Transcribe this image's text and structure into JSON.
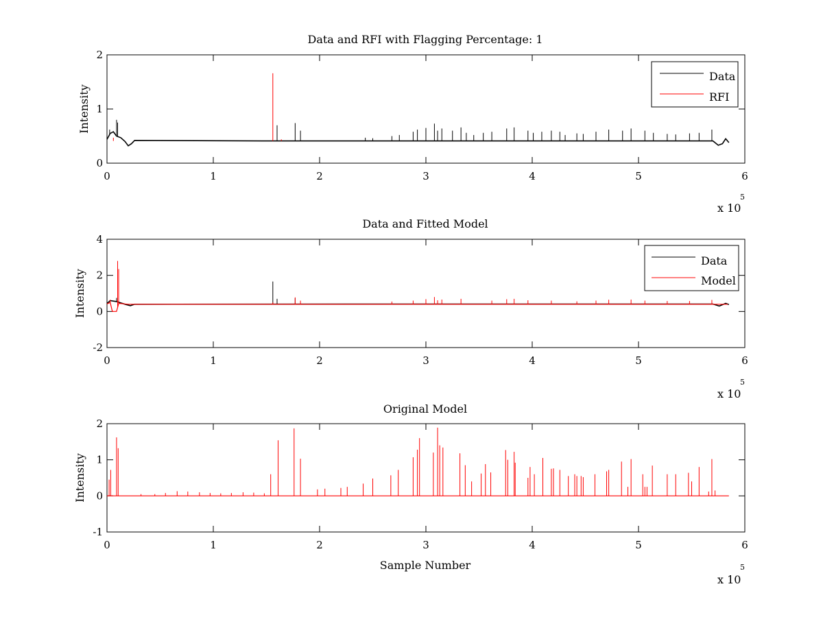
{
  "chart_data": [
    {
      "type": "line",
      "title": "Data and RFI with Flagging Percentage: 1",
      "xlabel": "",
      "ylabel": "Intensity",
      "xlim": [
        0,
        600000
      ],
      "ylim": [
        0,
        2
      ],
      "xticks": [
        "0",
        "1",
        "2",
        "3",
        "4",
        "5",
        "6"
      ],
      "yticks": [
        "0",
        "1",
        "2"
      ],
      "x_multiplier": {
        "base": "x 10",
        "exponent": "5"
      },
      "legend": {
        "position": "top-right",
        "entries": [
          {
            "name": "Data",
            "color": "#000000"
          },
          {
            "name": "RFI",
            "color": "#ff0000"
          }
        ]
      },
      "series": [
        {
          "name": "Data",
          "color": "#000000",
          "baseline": [
            [
              0,
              0.44
            ],
            [
              3000,
              0.55
            ],
            [
              6000,
              0.58
            ],
            [
              9000,
              0.5
            ],
            [
              13000,
              0.47
            ],
            [
              17000,
              0.4
            ],
            [
              20000,
              0.32
            ],
            [
              23000,
              0.36
            ],
            [
              26000,
              0.42
            ],
            [
              150000,
              0.41
            ],
            [
              300000,
              0.41
            ],
            [
              570000,
              0.41
            ],
            [
              575000,
              0.33
            ],
            [
              579000,
              0.36
            ],
            [
              582000,
              0.45
            ],
            [
              585000,
              0.38
            ]
          ],
          "spikes": [
            [
              2500,
              0.62
            ],
            [
              9000,
              0.8
            ],
            [
              10000,
              0.75
            ],
            [
              160000,
              0.7
            ],
            [
              177000,
              0.74
            ],
            [
              182000,
              0.6
            ],
            [
              243000,
              0.47
            ],
            [
              250000,
              0.46
            ],
            [
              268000,
              0.5
            ],
            [
              275000,
              0.52
            ],
            [
              288000,
              0.58
            ],
            [
              292000,
              0.62
            ],
            [
              300000,
              0.65
            ],
            [
              308000,
              0.73
            ],
            [
              311000,
              0.6
            ],
            [
              315000,
              0.64
            ],
            [
              325000,
              0.6
            ],
            [
              333000,
              0.66
            ],
            [
              338000,
              0.56
            ],
            [
              345000,
              0.52
            ],
            [
              354000,
              0.56
            ],
            [
              362000,
              0.58
            ],
            [
              376000,
              0.64
            ],
            [
              383000,
              0.66
            ],
            [
              396000,
              0.6
            ],
            [
              401000,
              0.56
            ],
            [
              409000,
              0.58
            ],
            [
              418000,
              0.6
            ],
            [
              426000,
              0.58
            ],
            [
              431000,
              0.52
            ],
            [
              442000,
              0.55
            ],
            [
              448000,
              0.54
            ],
            [
              460000,
              0.58
            ],
            [
              472000,
              0.62
            ],
            [
              485000,
              0.6
            ],
            [
              493000,
              0.64
            ],
            [
              506000,
              0.6
            ],
            [
              514000,
              0.56
            ],
            [
              527000,
              0.54
            ],
            [
              535000,
              0.53
            ],
            [
              548000,
              0.55
            ],
            [
              557000,
              0.56
            ],
            [
              569000,
              0.62
            ]
          ]
        },
        {
          "name": "RFI",
          "color": "#ff0000",
          "spikes": [
            [
              6000,
              0.47
            ],
            [
              156000,
              1.66
            ],
            [
              164000,
              0.44
            ]
          ]
        }
      ]
    },
    {
      "type": "line",
      "title": "Data and Fitted Model",
      "xlabel": "",
      "ylabel": "Intensity",
      "xlim": [
        0,
        600000
      ],
      "ylim": [
        -2,
        4
      ],
      "xticks": [
        "0",
        "1",
        "2",
        "3",
        "4",
        "5",
        "6"
      ],
      "yticks": [
        "-2",
        "0",
        "2",
        "4"
      ],
      "x_multiplier": {
        "base": "x 10",
        "exponent": "5"
      },
      "legend": {
        "position": "top-right",
        "entries": [
          {
            "name": "Data",
            "color": "#000000"
          },
          {
            "name": "Model",
            "color": "#ff0000"
          }
        ]
      },
      "series": [
        {
          "name": "Data",
          "color": "#000000",
          "baseline": [
            [
              0,
              0.44
            ],
            [
              3000,
              0.6
            ],
            [
              9000,
              0.55
            ],
            [
              17000,
              0.4
            ],
            [
              22000,
              0.32
            ],
            [
              26000,
              0.4
            ],
            [
              300000,
              0.41
            ],
            [
              570000,
              0.41
            ],
            [
              576000,
              0.3
            ],
            [
              582000,
              0.45
            ],
            [
              585000,
              0.38
            ]
          ],
          "spikes": [
            [
              9000,
              0.75
            ],
            [
              156000,
              1.66
            ],
            [
              160000,
              0.7
            ],
            [
              177000,
              0.74
            ]
          ]
        },
        {
          "name": "Model",
          "color": "#ff0000",
          "baseline": [
            [
              0,
              0.42
            ],
            [
              3000,
              0.5
            ],
            [
              5000,
              0.0
            ],
            [
              9000,
              0.0
            ],
            [
              11000,
              0.45
            ],
            [
              20000,
              0.4
            ],
            [
              584000,
              0.4
            ]
          ],
          "spikes": [
            [
              3000,
              0.65
            ],
            [
              10000,
              2.8
            ],
            [
              11000,
              2.35
            ],
            [
              156000,
              0.5
            ],
            [
              177000,
              0.78
            ],
            [
              182000,
              0.6
            ],
            [
              268000,
              0.55
            ],
            [
              288000,
              0.6
            ],
            [
              300000,
              0.68
            ],
            [
              308000,
              0.8
            ],
            [
              311000,
              0.62
            ],
            [
              315000,
              0.66
            ],
            [
              333000,
              0.7
            ],
            [
              362000,
              0.6
            ],
            [
              376000,
              0.68
            ],
            [
              383000,
              0.7
            ],
            [
              396000,
              0.62
            ],
            [
              418000,
              0.6
            ],
            [
              442000,
              0.56
            ],
            [
              460000,
              0.6
            ],
            [
              472000,
              0.65
            ],
            [
              493000,
              0.66
            ],
            [
              506000,
              0.6
            ],
            [
              527000,
              0.58
            ],
            [
              548000,
              0.58
            ],
            [
              569000,
              0.64
            ]
          ]
        }
      ]
    },
    {
      "type": "line",
      "title": "Original Model",
      "xlabel": "Sample Number",
      "ylabel": "Intensity",
      "xlim": [
        0,
        600000
      ],
      "ylim": [
        -1,
        2
      ],
      "xticks": [
        "0",
        "1",
        "2",
        "3",
        "4",
        "5",
        "6"
      ],
      "yticks": [
        "-1",
        "0",
        "1",
        "2"
      ],
      "x_multiplier": {
        "base": "x 10",
        "exponent": "5"
      },
      "series": [
        {
          "name": "Model",
          "color": "#ff0000",
          "baseline": [
            [
              0,
              0.0
            ],
            [
              585000,
              0.0
            ]
          ],
          "spikes": [
            [
              2000,
              0.45
            ],
            [
              3500,
              0.72
            ],
            [
              9000,
              1.62
            ],
            [
              10500,
              1.32
            ],
            [
              32000,
              0.05
            ],
            [
              45000,
              0.05
            ],
            [
              55000,
              0.08
            ],
            [
              66000,
              0.13
            ],
            [
              76000,
              0.12
            ],
            [
              87000,
              0.1
            ],
            [
              97000,
              0.08
            ],
            [
              107000,
              0.07
            ],
            [
              117000,
              0.08
            ],
            [
              128000,
              0.1
            ],
            [
              138000,
              0.09
            ],
            [
              148000,
              0.07
            ],
            [
              154000,
              0.6
            ],
            [
              161000,
              1.54
            ],
            [
              176000,
              1.87
            ],
            [
              182000,
              1.03
            ],
            [
              198000,
              0.18
            ],
            [
              205000,
              0.2
            ],
            [
              220000,
              0.22
            ],
            [
              226000,
              0.25
            ],
            [
              241000,
              0.34
            ],
            [
              250000,
              0.48
            ],
            [
              267000,
              0.57
            ],
            [
              274000,
              0.72
            ],
            [
              288000,
              1.07
            ],
            [
              292000,
              1.28
            ],
            [
              294000,
              1.6
            ],
            [
              307000,
              1.2
            ],
            [
              311000,
              1.89
            ],
            [
              313000,
              1.4
            ],
            [
              316000,
              1.34
            ],
            [
              332000,
              1.18
            ],
            [
              337000,
              0.85
            ],
            [
              343000,
              0.4
            ],
            [
              352000,
              0.62
            ],
            [
              356000,
              0.88
            ],
            [
              361000,
              0.65
            ],
            [
              375000,
              1.27
            ],
            [
              377000,
              1.0
            ],
            [
              383000,
              1.22
            ],
            [
              384000,
              0.92
            ],
            [
              396000,
              0.5
            ],
            [
              398000,
              0.8
            ],
            [
              402000,
              0.6
            ],
            [
              410000,
              1.05
            ],
            [
              418000,
              0.75
            ],
            [
              420000,
              0.76
            ],
            [
              426000,
              0.72
            ],
            [
              434000,
              0.55
            ],
            [
              440000,
              0.6
            ],
            [
              442000,
              0.55
            ],
            [
              446000,
              0.55
            ],
            [
              448000,
              0.52
            ],
            [
              459000,
              0.6
            ],
            [
              470000,
              0.68
            ],
            [
              472000,
              0.72
            ],
            [
              484000,
              0.95
            ],
            [
              490000,
              0.25
            ],
            [
              493000,
              1.02
            ],
            [
              504000,
              0.6
            ],
            [
              506000,
              0.25
            ],
            [
              508000,
              0.25
            ],
            [
              513000,
              0.84
            ],
            [
              527000,
              0.6
            ],
            [
              535000,
              0.6
            ],
            [
              547000,
              0.64
            ],
            [
              550000,
              0.4
            ],
            [
              557000,
              0.8
            ],
            [
              566000,
              0.12
            ],
            [
              569000,
              1.02
            ],
            [
              572000,
              0.15
            ]
          ]
        }
      ]
    }
  ]
}
